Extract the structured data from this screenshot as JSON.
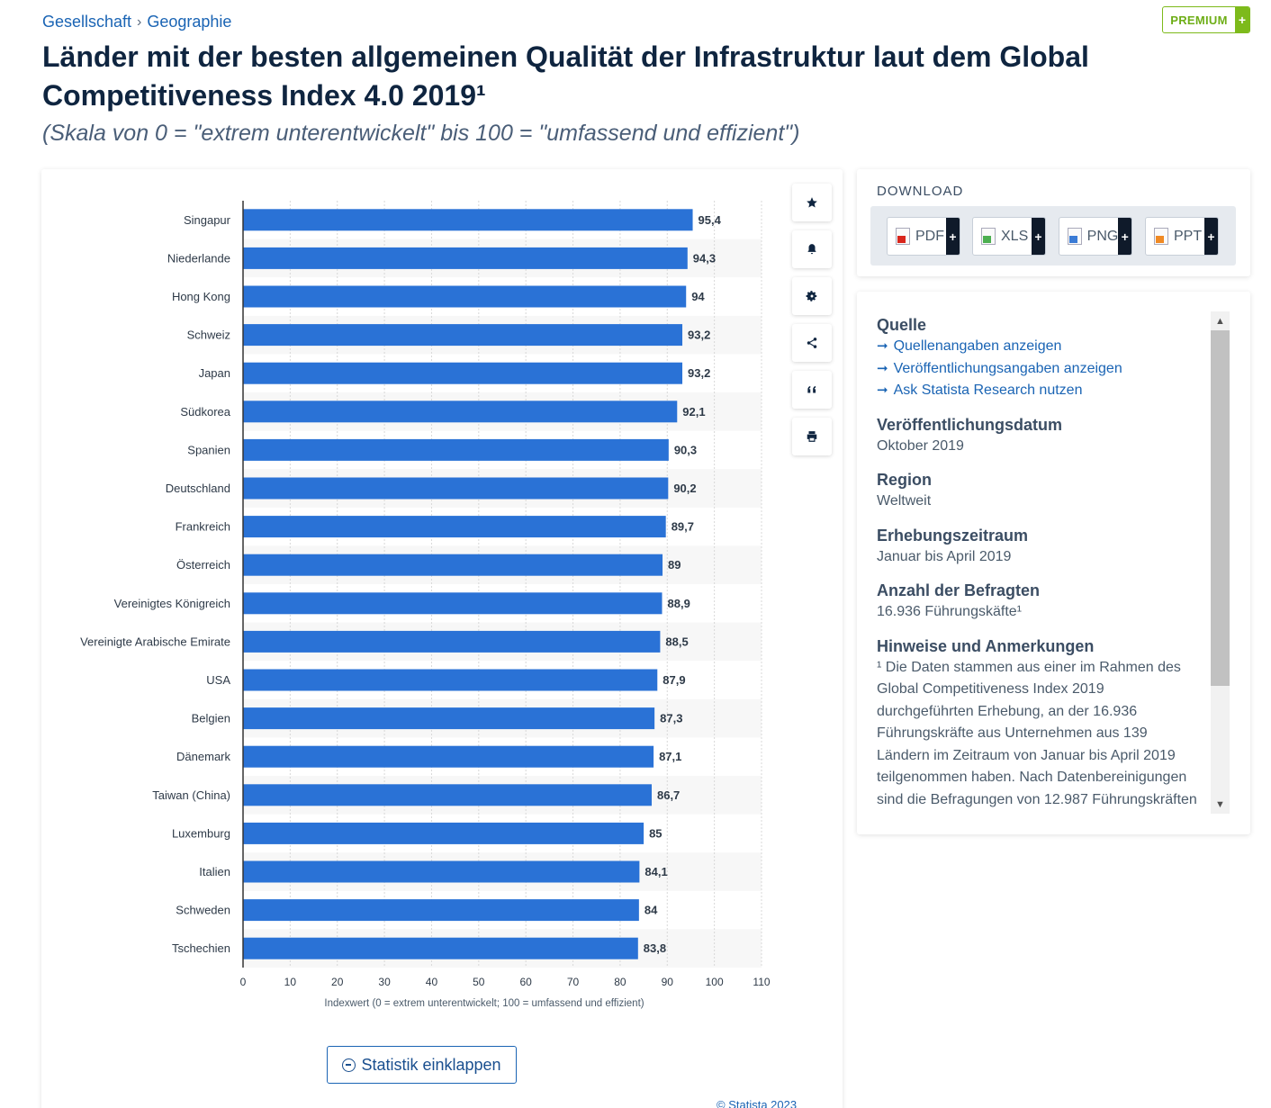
{
  "breadcrumb": {
    "items": [
      "Gesellschaft",
      "Geographie"
    ],
    "separator": "›"
  },
  "premium": {
    "label": "PREMIUM",
    "plus": "+"
  },
  "title": "Länder mit der besten allgemeinen Qualität der Infrastruktur laut dem Global Competitiveness Index 4.0 2019¹",
  "subtitle": "(Skala von 0 = \"extrem unterentwickelt\" bis 100 = \"umfassend und effizient\")",
  "colors": {
    "bar": "#2a72d6",
    "link": "#1a64b4",
    "premium": "#7dba1b",
    "heading": "#0f2540"
  },
  "chart_data": {
    "type": "bar",
    "orientation": "horizontal",
    "categories": [
      "Singapur",
      "Niederlande",
      "Hong Kong",
      "Schweiz",
      "Japan",
      "Südkorea",
      "Spanien",
      "Deutschland",
      "Frankreich",
      "Österreich",
      "Vereinigtes Königreich",
      "Vereinigte Arabische Emirate",
      "USA",
      "Belgien",
      "Dänemark",
      "Taiwan (China)",
      "Luxemburg",
      "Italien",
      "Schweden",
      "Tschechien"
    ],
    "values": [
      95.4,
      94.3,
      94,
      93.2,
      93.2,
      92.1,
      90.3,
      90.2,
      89.7,
      89,
      88.9,
      88.5,
      87.9,
      87.3,
      87.1,
      86.7,
      85,
      84.1,
      84,
      83.8
    ],
    "value_labels": [
      "95,4",
      "94,3",
      "94",
      "93,2",
      "93,2",
      "92,1",
      "90,3",
      "90,2",
      "89,7",
      "89",
      "88,9",
      "88,5",
      "87,9",
      "87,3",
      "87,1",
      "86,7",
      "85",
      "84,1",
      "84",
      "83,8"
    ],
    "xlim": [
      0,
      110
    ],
    "xticks": [
      0,
      10,
      20,
      30,
      40,
      50,
      60,
      70,
      80,
      90,
      100,
      110
    ],
    "xlabel": "Indexwert (0 = extrem unterentwickelt; 100 = umfassend und effizient)",
    "ylabel": "",
    "grid": true,
    "legend": "none"
  },
  "chart_tools": [
    "star-icon",
    "bell-icon",
    "gear-icon",
    "share-icon",
    "quote-icon",
    "print-icon"
  ],
  "collapse_button": "Statistik einklappen",
  "copyright": "© Statista 2023",
  "download": {
    "header": "DOWNLOAD",
    "buttons": [
      {
        "label": "PDF",
        "icon": "pdf-file-icon",
        "color": "#d9261c"
      },
      {
        "label": "XLS",
        "icon": "xls-file-icon",
        "color": "#4caf50"
      },
      {
        "label": "PNG",
        "icon": "png-file-icon",
        "color": "#3a7bd5"
      },
      {
        "label": "PPT",
        "icon": "ppt-file-icon",
        "color": "#f08a24"
      }
    ],
    "plus": "+"
  },
  "info": {
    "source_heading": "Quelle",
    "links": [
      "Quellenangaben anzeigen",
      "Veröffentlichungsangaben anzeigen",
      "Ask Statista Research nutzen"
    ],
    "sections": [
      {
        "heading": "Veröffentlichungsdatum",
        "value": "Oktober 2019"
      },
      {
        "heading": "Region",
        "value": "Weltweit"
      },
      {
        "heading": "Erhebungszeitraum",
        "value": "Januar bis April 2019"
      },
      {
        "heading": "Anzahl der Befragten",
        "value": "16.936 Führungskäfte¹"
      },
      {
        "heading": "Hinweise und Anmerkungen",
        "value": "¹ Die Daten stammen aus einer im Rahmen des Global Competitiveness Index 2019 durchgeführten Erhebung, an der 16.936 Führungskräfte aus Unternehmen aus 139 Ländern im Zeitraum von Januar bis April 2019 teilgenommen haben. Nach Datenbereinigungen sind die Befragungen von 12.987 Führungskräften"
      }
    ]
  }
}
